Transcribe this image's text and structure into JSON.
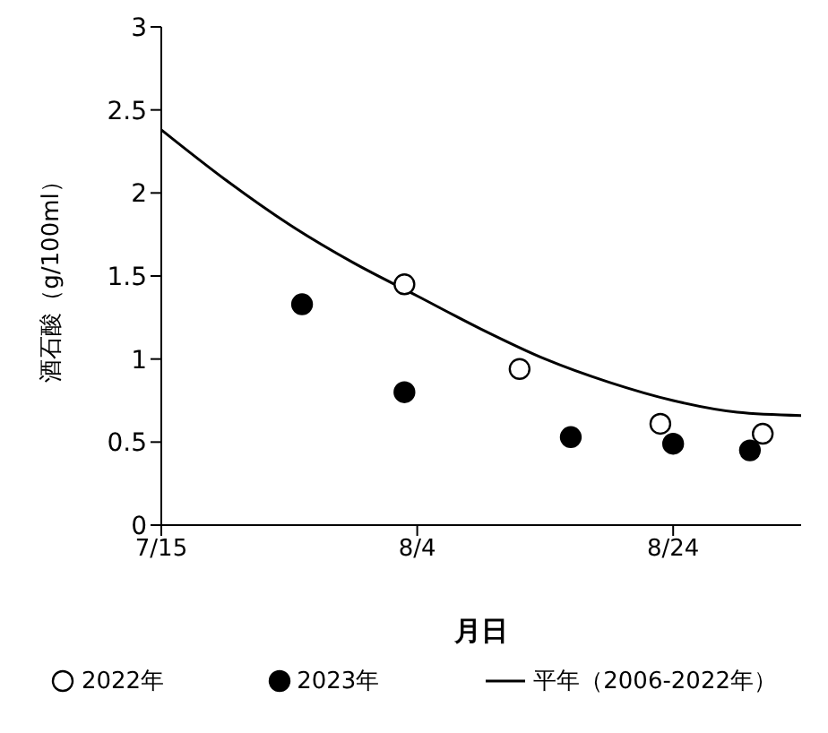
{
  "chart_data": {
    "type": "scatter",
    "xlabel": "月日",
    "ylabel": "酒石酸（g/100ml）",
    "xlim": [
      "--07-15",
      "--09-03"
    ],
    "xticks": [
      {
        "value": "--07-15",
        "label": "7/15"
      },
      {
        "value": "--08-04",
        "label": "8/4"
      },
      {
        "value": "--08-24",
        "label": "8/24"
      }
    ],
    "ylim": [
      0,
      3
    ],
    "yticks": [
      0,
      0.5,
      1,
      1.5,
      2,
      2.5,
      3
    ],
    "legend": "bottom",
    "series": [
      {
        "name": "2022年",
        "marker": "circle",
        "color": "#ffffff",
        "x": [
          "--08-03",
          "--08-12",
          "--08-23",
          "--08-31"
        ],
        "values": [
          1.45,
          0.94,
          0.61,
          0.55
        ]
      },
      {
        "name": "2023年",
        "marker": "circle",
        "color": "#000000",
        "x": [
          "--07-26",
          "--08-03",
          "--08-16",
          "--08-24",
          "--08-30"
        ],
        "values": [
          1.33,
          0.8,
          0.53,
          0.49,
          0.45
        ]
      },
      {
        "name": "平年（2006-2022年）",
        "type": "line",
        "marker": "none",
        "line_style": "solid",
        "color": "#000000",
        "x": [
          "--07-15",
          "--07-20",
          "--07-25",
          "--07-30",
          "--08-04",
          "--08-09",
          "--08-14",
          "--08-19",
          "--08-24",
          "--08-29",
          "--09-03"
        ],
        "values": [
          2.38,
          2.08,
          1.81,
          1.58,
          1.38,
          1.18,
          1.0,
          0.86,
          0.75,
          0.68,
          0.66
        ]
      }
    ]
  }
}
